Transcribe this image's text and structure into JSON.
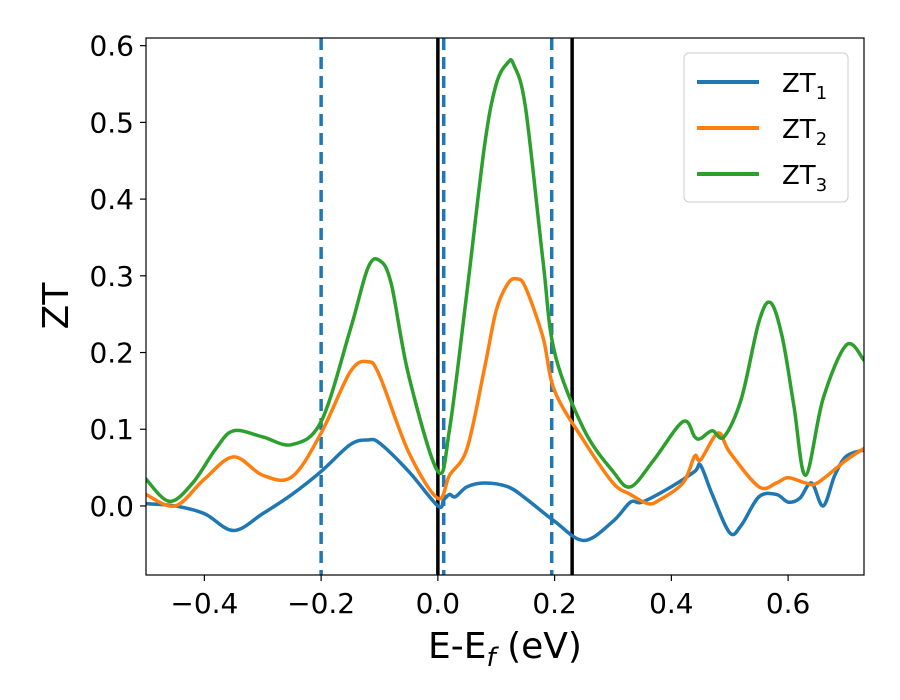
{
  "chart_data": {
    "type": "line",
    "xlabel": {
      "main": "E-E",
      "sub": "f",
      "suffix": " (eV)"
    },
    "ylabel": "ZT",
    "xlim": [
      -0.5,
      0.73
    ],
    "ylim": [
      -0.09,
      0.61
    ],
    "xticks": [
      -0.4,
      -0.2,
      0.0,
      0.2,
      0.4,
      0.6
    ],
    "xtick_labels": [
      "−0.4",
      "−0.2",
      "0.0",
      "0.2",
      "0.4",
      "0.6"
    ],
    "yticks": [
      0.0,
      0.1,
      0.2,
      0.3,
      0.4,
      0.5,
      0.6
    ],
    "ytick_labels": [
      "0.0",
      "0.1",
      "0.2",
      "0.3",
      "0.4",
      "0.5",
      "0.6"
    ],
    "grid": false,
    "legend_position": "top-right",
    "vlines_solid": [
      0.0,
      0.23
    ],
    "vlines_dashed": [
      -0.2,
      0.01,
      0.195
    ],
    "vline_solid_color": "#000000",
    "vline_dashed_color": "#1f77b4",
    "series": [
      {
        "name": "ZT",
        "sub": "1",
        "color": "#1f77b4",
        "x": [
          -0.5,
          -0.45,
          -0.4,
          -0.35,
          -0.3,
          -0.25,
          -0.2,
          -0.15,
          -0.12,
          -0.1,
          -0.05,
          0.0,
          0.01,
          0.02,
          0.03,
          0.05,
          0.08,
          0.12,
          0.15,
          0.2,
          0.25,
          0.3,
          0.33,
          0.35,
          0.4,
          0.44,
          0.45,
          0.47,
          0.5,
          0.52,
          0.55,
          0.58,
          0.6,
          0.62,
          0.64,
          0.66,
          0.68,
          0.7,
          0.73
        ],
        "y": [
          0.003,
          0.0,
          -0.01,
          -0.032,
          -0.01,
          0.015,
          0.045,
          0.08,
          0.086,
          0.082,
          0.045,
          0.0,
          0.008,
          0.015,
          0.012,
          0.025,
          0.03,
          0.025,
          0.01,
          -0.02,
          -0.045,
          -0.02,
          0.005,
          0.005,
          0.025,
          0.045,
          0.053,
          0.015,
          -0.035,
          -0.025,
          0.012,
          0.015,
          0.005,
          0.01,
          0.03,
          0.0,
          0.04,
          0.065,
          0.073
        ]
      },
      {
        "name": "ZT",
        "sub": "2",
        "color": "#ff7f0e",
        "x": [
          -0.5,
          -0.45,
          -0.4,
          -0.35,
          -0.3,
          -0.25,
          -0.2,
          -0.15,
          -0.12,
          -0.1,
          -0.05,
          0.0,
          0.02,
          0.05,
          0.08,
          0.1,
          0.12,
          0.135,
          0.15,
          0.18,
          0.2,
          0.25,
          0.3,
          0.33,
          0.36,
          0.38,
          0.42,
          0.44,
          0.45,
          0.48,
          0.5,
          0.55,
          0.58,
          0.6,
          0.63,
          0.65,
          0.7,
          0.73
        ],
        "y": [
          0.015,
          0.0,
          0.035,
          0.064,
          0.04,
          0.038,
          0.095,
          0.175,
          0.188,
          0.17,
          0.07,
          0.01,
          0.04,
          0.075,
          0.18,
          0.255,
          0.29,
          0.296,
          0.285,
          0.22,
          0.15,
          0.085,
          0.03,
          0.015,
          0.003,
          0.008,
          0.03,
          0.065,
          0.06,
          0.095,
          0.07,
          0.025,
          0.03,
          0.037,
          0.03,
          0.03,
          0.06,
          0.075
        ]
      },
      {
        "name": "ZT",
        "sub": "3",
        "color": "#2ca02c",
        "x": [
          -0.5,
          -0.46,
          -0.42,
          -0.38,
          -0.35,
          -0.3,
          -0.25,
          -0.2,
          -0.15,
          -0.12,
          -0.1,
          -0.08,
          -0.05,
          0.0,
          0.02,
          0.05,
          0.08,
          0.1,
          0.12,
          0.13,
          0.15,
          0.18,
          0.2,
          0.25,
          0.3,
          0.33,
          0.37,
          0.42,
          0.44,
          0.45,
          0.47,
          0.49,
          0.52,
          0.55,
          0.57,
          0.59,
          0.61,
          0.63,
          0.66,
          0.7,
          0.73
        ],
        "y": [
          0.035,
          0.006,
          0.03,
          0.075,
          0.098,
          0.09,
          0.08,
          0.11,
          0.23,
          0.31,
          0.32,
          0.29,
          0.17,
          0.045,
          0.1,
          0.28,
          0.47,
          0.55,
          0.578,
          0.575,
          0.52,
          0.32,
          0.2,
          0.1,
          0.045,
          0.025,
          0.06,
          0.11,
          0.09,
          0.088,
          0.098,
          0.09,
          0.14,
          0.24,
          0.265,
          0.22,
          0.13,
          0.04,
          0.14,
          0.21,
          0.19
        ]
      }
    ]
  }
}
